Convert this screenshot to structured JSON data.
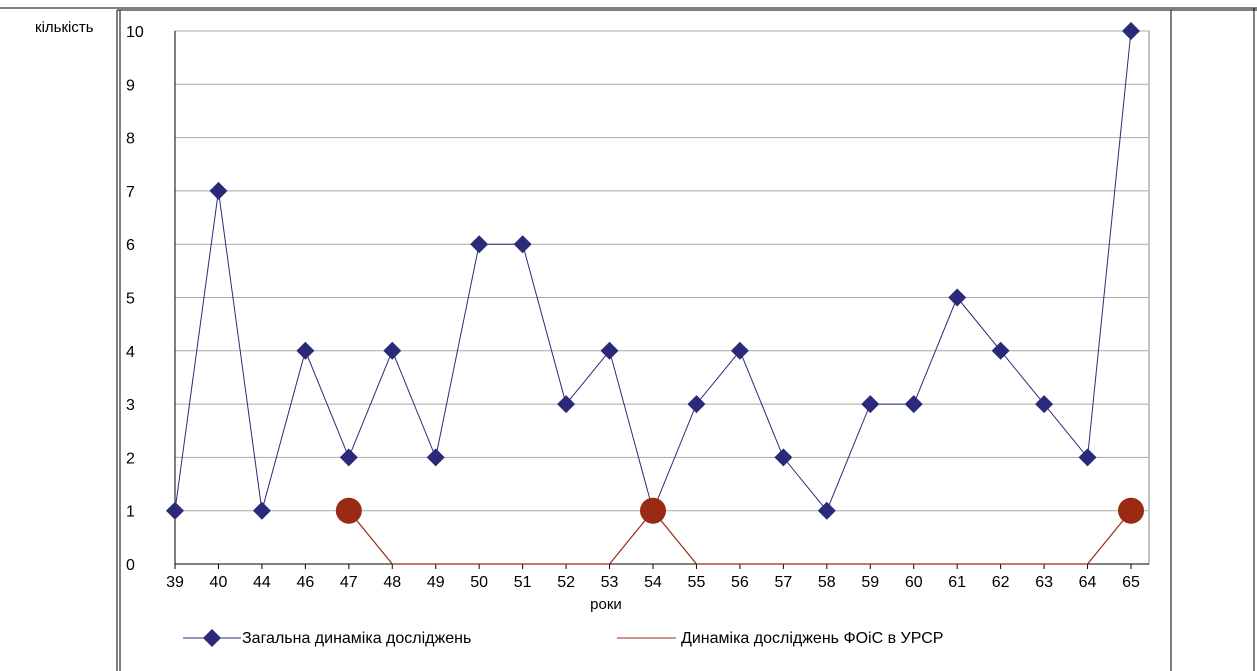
{
  "chart_data": {
    "type": "line",
    "xlabel": "роки",
    "ylabel": "кількість",
    "categories": [
      "39",
      "40",
      "44",
      "46",
      "47",
      "48",
      "49",
      "50",
      "51",
      "52",
      "53",
      "54",
      "55",
      "56",
      "57",
      "58",
      "59",
      "60",
      "61",
      "62",
      "63",
      "64",
      "65"
    ],
    "ylim": [
      0,
      10
    ],
    "yticks": [
      "0",
      "1",
      "2",
      "3",
      "4",
      "5",
      "6",
      "7",
      "8",
      "9",
      "10"
    ],
    "grid": true,
    "legend_position": "bottom",
    "series": [
      {
        "name": "Загальна динаміка досліджень",
        "color": "#2b2a7a",
        "marker": "diamond",
        "values": [
          1,
          7,
          1,
          4,
          2,
          4,
          2,
          6,
          6,
          3,
          4,
          1,
          3,
          4,
          2,
          1,
          3,
          3,
          5,
          4,
          3,
          2,
          10
        ]
      },
      {
        "name": "Динаміка досліджень ФОіС в УРСР",
        "color": "#9a2a14",
        "marker": "circle",
        "values": [
          null,
          null,
          null,
          null,
          1,
          0,
          0,
          0,
          0,
          0,
          0,
          1,
          0,
          0,
          0,
          0,
          0,
          0,
          0,
          0,
          0,
          0,
          1
        ]
      }
    ]
  }
}
